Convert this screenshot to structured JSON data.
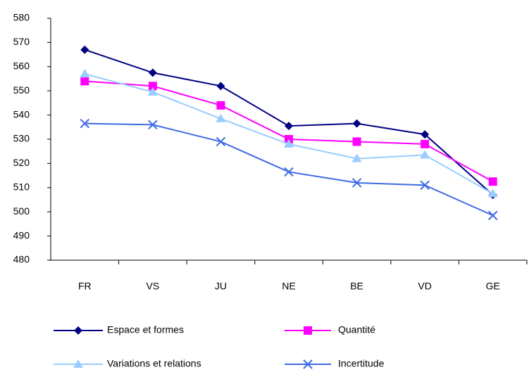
{
  "chart_data": {
    "type": "line",
    "categories": [
      "FR",
      "VS",
      "JU",
      "NE",
      "BE",
      "VD",
      "GE"
    ],
    "series": [
      {
        "name": "Espace et formes",
        "color": "#000080",
        "marker": "diamond",
        "values": [
          567,
          557.5,
          552,
          535.5,
          536.5,
          532,
          507
        ]
      },
      {
        "name": "Quantité",
        "color": "#ff00ff",
        "marker": "square",
        "values": [
          554,
          552,
          544,
          530,
          529,
          528,
          512.5
        ]
      },
      {
        "name": "Variations et relations",
        "color": "#99ccff",
        "marker": "triangle",
        "values": [
          557,
          549.5,
          538.5,
          528,
          522,
          523.5,
          507.5
        ]
      },
      {
        "name": "Incertitude",
        "color": "#3f6ae6",
        "marker": "x",
        "values": [
          536.5,
          536,
          529,
          516.5,
          512,
          511,
          498.5
        ]
      }
    ],
    "ylim": [
      480,
      580
    ],
    "yticks": [
      480,
      490,
      500,
      510,
      520,
      530,
      540,
      550,
      560,
      570,
      580
    ],
    "grid": false,
    "legend": "bottom"
  }
}
